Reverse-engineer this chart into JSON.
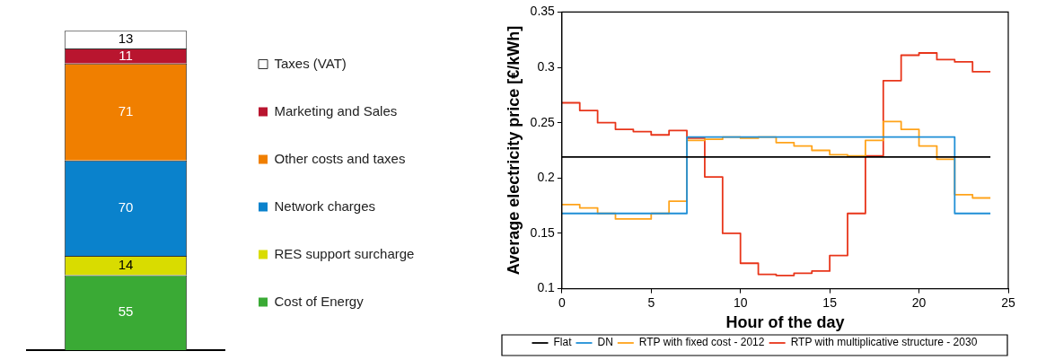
{
  "chart_data": [
    {
      "type": "bar",
      "stacked": true,
      "categories": [
        null
      ],
      "data_labels": true,
      "legend": "right",
      "series": [
        {
          "name": "Cost of Energy",
          "color": "#3aaa35",
          "values": [
            55
          ]
        },
        {
          "name": "RES support surcharge",
          "color": "#d9dc00",
          "values": [
            14
          ]
        },
        {
          "name": "Network charges",
          "color": "#0a82cc",
          "values": [
            70
          ]
        },
        {
          "name": "Other costs and taxes",
          "color": "#f07f00",
          "values": [
            71
          ]
        },
        {
          "name": "Marketing and Sales",
          "color": "#b9152f",
          "values": [
            11
          ]
        },
        {
          "name": "Taxes (VAT)",
          "color": "#ffffff",
          "values": [
            13
          ]
        }
      ]
    },
    {
      "type": "step",
      "xlabel": "Hour of the day",
      "ylabel": "Average electricity price [€/kWh]",
      "xlim": [
        0,
        25
      ],
      "xticks": [
        0,
        5,
        10,
        15,
        20,
        25
      ],
      "ylim": [
        0.1,
        0.35
      ],
      "yticks": [
        0.1,
        0.15,
        0.2,
        0.25,
        0.3,
        0.35
      ],
      "grid": false,
      "legend": "bottom",
      "series": [
        {
          "name": "Flat",
          "color": "#000000",
          "x": [
            0,
            24
          ],
          "values": [
            0.219,
            0.219
          ]
        },
        {
          "name": "DN",
          "color": "#1f8fd6",
          "x": [
            0,
            1,
            2,
            3,
            4,
            5,
            6,
            7,
            8,
            9,
            10,
            11,
            12,
            13,
            14,
            15,
            16,
            17,
            18,
            19,
            20,
            21,
            22,
            23,
            24
          ],
          "values": [
            0.168,
            0.168,
            0.168,
            0.168,
            0.168,
            0.168,
            0.168,
            0.237,
            0.237,
            0.237,
            0.237,
            0.237,
            0.237,
            0.237,
            0.237,
            0.237,
            0.237,
            0.237,
            0.237,
            0.237,
            0.237,
            0.237,
            0.168,
            0.168,
            0.168
          ]
        },
        {
          "name": "RTP with fixed cost - 2012",
          "color": "#ffa31a",
          "x": [
            0,
            1,
            2,
            3,
            4,
            5,
            6,
            7,
            8,
            9,
            10,
            11,
            12,
            13,
            14,
            15,
            16,
            17,
            18,
            19,
            20,
            21,
            22,
            23,
            24
          ],
          "values": [
            0.176,
            0.173,
            0.168,
            0.163,
            0.163,
            0.168,
            0.179,
            0.234,
            0.235,
            0.237,
            0.236,
            0.237,
            0.232,
            0.229,
            0.225,
            0.221,
            0.22,
            0.234,
            0.251,
            0.244,
            0.229,
            0.217,
            0.185,
            0.182,
            0.182
          ]
        },
        {
          "name": "RTP with multiplicative structure - 2030",
          "color": "#e8351a",
          "x": [
            0,
            1,
            2,
            3,
            4,
            5,
            6,
            7,
            8,
            9,
            10,
            11,
            12,
            13,
            14,
            15,
            16,
            17,
            18,
            19,
            20,
            21,
            22,
            23,
            24
          ],
          "values": [
            0.268,
            0.261,
            0.25,
            0.244,
            0.242,
            0.239,
            0.243,
            0.236,
            0.201,
            0.15,
            0.123,
            0.113,
            0.112,
            0.114,
            0.116,
            0.13,
            0.168,
            0.22,
            0.288,
            0.311,
            0.313,
            0.307,
            0.305,
            0.296,
            0.296
          ]
        }
      ]
    }
  ]
}
